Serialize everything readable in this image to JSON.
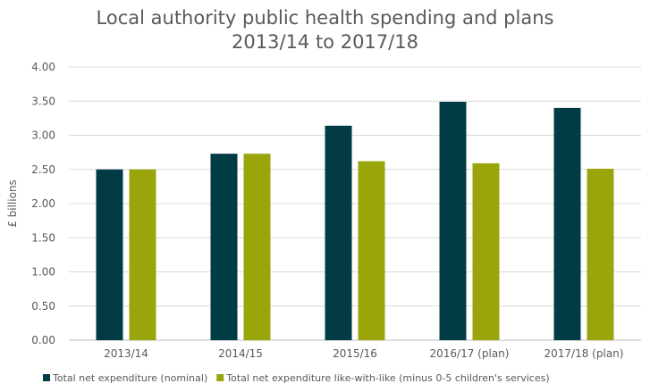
{
  "chart_data": {
    "type": "bar",
    "title": "Local authority public health spending and plans",
    "subtitle": "2013/14 to 2017/18",
    "ylabel": "£ billions",
    "xlabel": "",
    "ylim": [
      0,
      4
    ],
    "yticks": [
      "0.00",
      "0.50",
      "1.00",
      "1.50",
      "2.00",
      "2.50",
      "3.00",
      "3.50",
      "4.00"
    ],
    "grid": true,
    "legend_position": "bottom",
    "categories": [
      "2013/14",
      "2014/15",
      "2015/16",
      "2016/17 (plan)",
      "2017/18 (plan)"
    ],
    "series": [
      {
        "name": "Total net expenditure (nominal)",
        "color": "#003B46",
        "values": [
          2.5,
          2.73,
          3.14,
          3.49,
          3.4
        ]
      },
      {
        "name": "Total net expenditure like-with-like (minus 0-5 children's services)",
        "color": "#9AA50B",
        "values": [
          2.5,
          2.73,
          2.62,
          2.59,
          2.51
        ]
      }
    ]
  }
}
